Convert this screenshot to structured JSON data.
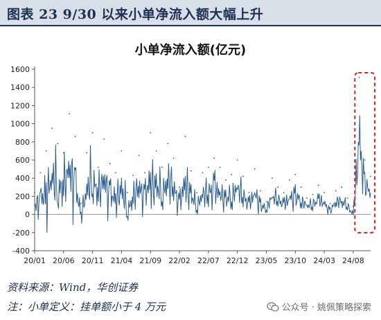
{
  "header": {
    "figure_title": "图表 23    9/30 以来小单净流入额大幅上升"
  },
  "chart_data": {
    "type": "line",
    "title": "小单净流入额(亿元)",
    "ylim": [
      -400,
      1600
    ],
    "yticks": [
      -400,
      -200,
      0,
      200,
      400,
      600,
      800,
      1000,
      1200,
      1400,
      1600
    ],
    "xlim": [
      "2020-01",
      "2024-11"
    ],
    "xticks": [
      "20/01",
      "20/06",
      "20/11",
      "21/04",
      "21/09",
      "22/02",
      "22/07",
      "22/12",
      "23/05",
      "23/10",
      "24/03",
      "24/08"
    ],
    "grid": false,
    "series": [
      {
        "color": "#2a5d8f",
        "x": [
          "2020-01",
          "2020-02",
          "2020-03",
          "2020-04",
          "2020-05",
          "2020-06",
          "2020-07",
          "2020-08",
          "2020-09",
          "2020-10",
          "2020-11",
          "2020-12",
          "2021-01",
          "2021-02",
          "2021-03",
          "2021-04",
          "2021-05",
          "2021-06",
          "2021-07",
          "2021-08",
          "2021-09",
          "2021-10",
          "2021-11",
          "2021-12",
          "2022-01",
          "2022-02",
          "2022-03",
          "2022-04",
          "2022-05",
          "2022-06",
          "2022-07",
          "2022-08",
          "2022-09",
          "2022-10",
          "2022-11",
          "2022-12",
          "2023-01",
          "2023-02",
          "2023-03",
          "2023-04",
          "2023-05",
          "2023-06",
          "2023-07",
          "2023-08",
          "2023-09",
          "2023-10",
          "2023-11",
          "2023-12",
          "2024-01",
          "2024-02",
          "2024-03",
          "2024-04",
          "2024-05",
          "2024-06",
          "2024-07",
          "2024-08",
          "2024-09",
          "2024-10",
          "2024-11"
        ],
        "values": [
          240,
          460,
          700,
          950,
          780,
          680,
          1110,
          860,
          120,
          680,
          900,
          520,
          830,
          560,
          460,
          700,
          240,
          430,
          650,
          460,
          900,
          700,
          520,
          780,
          620,
          300,
          860,
          480,
          240,
          460,
          520,
          620,
          520,
          380,
          440,
          600,
          420,
          240,
          500,
          260,
          140,
          400,
          300,
          240,
          380,
          440,
          300,
          180,
          220,
          320,
          240,
          120,
          260,
          300,
          180,
          90,
          1510,
          600,
          420
        ],
        "values_low": [
          -60,
          -120,
          -260,
          -100,
          -240,
          -80,
          -160,
          -200,
          -120,
          -140,
          -120,
          -100,
          -80,
          -140,
          -110,
          -120,
          -160,
          -100,
          -60,
          -80,
          -140,
          -80,
          -60,
          -90,
          -50,
          -80,
          -140,
          -40,
          -60,
          -40,
          -80,
          -40,
          -60,
          -40,
          -50,
          -20,
          -30,
          -20,
          -40,
          -60,
          -20,
          -10,
          20,
          -20,
          -40,
          -20,
          -10,
          20,
          -20,
          10,
          -10,
          -40,
          20,
          -10,
          0,
          -100,
          60,
          80,
          60
        ]
      }
    ],
    "highlight": {
      "x": [
        "2024-09",
        "2024-11"
      ],
      "style": "dashed",
      "color": "#e0221d"
    }
  },
  "notes": {
    "source": "资料来源：Wind，华创证券",
    "definition": "注：小单定义：挂单额小于 4 万元"
  },
  "watermark": {
    "text": "公众号 · 姚佩策略探索",
    "icon": "wechat-icon"
  }
}
